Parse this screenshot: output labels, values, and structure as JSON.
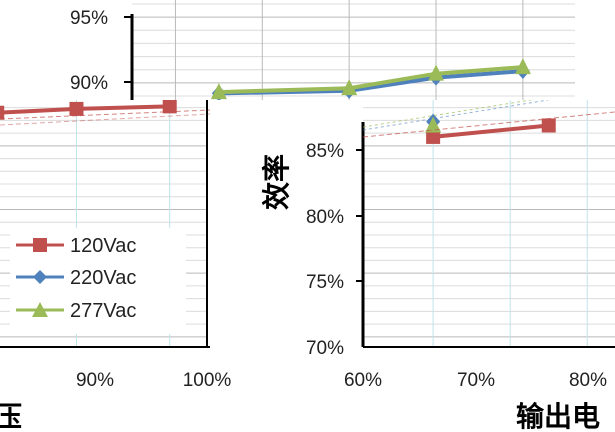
{
  "chart_data": {
    "type": "line",
    "title": "",
    "xlabel": "输出电",
    "xlabel_left": "压",
    "ylabel": "效率",
    "colors": {
      "grid": "#b9b9b9",
      "grid_minor": "#dcdcdc",
      "grid_vertical": "#bfe3ea",
      "axis": "#000000"
    },
    "legend": {
      "placement": "left-middle",
      "entries": [
        {
          "name": "120Vac",
          "color": "#c0504d",
          "marker": "square-marker-icon"
        },
        {
          "name": "220Vac",
          "color": "#4f81bd",
          "marker": "diamond-marker-icon"
        },
        {
          "name": "277Vac",
          "color": "#9bbb59",
          "marker": "triangle-marker-icon"
        }
      ]
    },
    "panels": [
      {
        "id": "top",
        "ytick_labels": [
          "95%",
          "90%"
        ],
        "ytick_values": [
          95,
          90
        ],
        "ylim": [
          88.7,
          96.3
        ],
        "xlim": [
          35,
          86
        ],
        "series": [
          {
            "name": "220Vac",
            "color": "#4f81bd",
            "marker": "diamond",
            "x": [
              45,
              60,
              70,
              80
            ],
            "y": [
              89.2,
              89.4,
              90.4,
              90.9
            ]
          },
          {
            "name": "277Vac",
            "color": "#9bbb59",
            "marker": "triangle",
            "x": [
              45,
              60,
              70,
              80
            ],
            "y": [
              89.3,
              89.6,
              90.7,
              91.2
            ]
          }
        ]
      },
      {
        "id": "left",
        "xtick_labels": [
          "90%",
          "100%"
        ],
        "xtick_values": [
          90,
          100
        ],
        "xlim": [
          81.8,
          104
        ],
        "ylim": [
          69.2,
          88.6
        ],
        "series": [
          {
            "name": "120Vac",
            "color": "#c0504d",
            "marker": "square",
            "x": [
              81.5,
              90,
              100
            ],
            "y": [
              87.6,
              87.9,
              88.1
            ]
          }
        ]
      },
      {
        "id": "right",
        "ytick_labels": [
          "85%",
          "80%",
          "75%",
          "70%"
        ],
        "ytick_values": [
          85,
          80,
          75,
          70
        ],
        "xtick_labels": [
          "60%",
          "70%",
          "80%"
        ],
        "xtick_values": [
          60,
          70,
          80
        ],
        "xlim": [
          50.9,
          83.6
        ],
        "ylim": [
          69.2,
          88.6
        ],
        "series": [
          {
            "name": "120Vac",
            "color": "#c0504d",
            "marker": "square",
            "x": [
              60,
              75
            ],
            "y": [
              85.7,
              86.6
            ]
          },
          {
            "name": "220Vac",
            "color": "#4f81bd",
            "marker": "diamond",
            "x": [
              60
            ],
            "y": [
              86.9
            ]
          },
          {
            "name": "277Vac",
            "color": "#9bbb59",
            "marker": "triangle",
            "x": [
              60
            ],
            "y": [
              86.6
            ]
          }
        ]
      }
    ]
  }
}
